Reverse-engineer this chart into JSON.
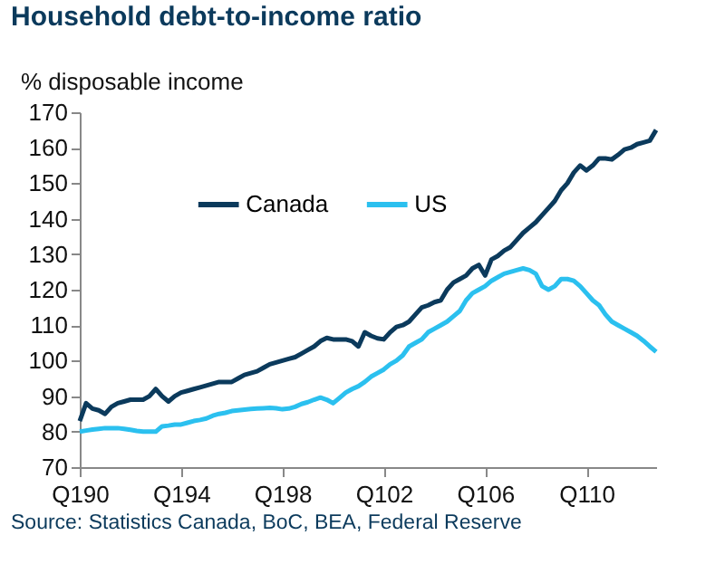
{
  "chart_data": {
    "type": "line",
    "title": "Household debt-to-income ratio",
    "ylabel": "% disposable income",
    "annotations": [
      "Source: Statistics Canada, BoC, BEA, Federal Reserve"
    ],
    "categories": [
      "Q190",
      null,
      null,
      null,
      null,
      null,
      null,
      null,
      null,
      null,
      null,
      null,
      null,
      null,
      null,
      null,
      "Q194",
      null,
      null,
      null,
      null,
      null,
      null,
      null,
      null,
      null,
      null,
      null,
      null,
      null,
      null,
      null,
      "Q198",
      null,
      null,
      null,
      null,
      null,
      null,
      null,
      null,
      null,
      null,
      null,
      null,
      null,
      null,
      null,
      "Q102",
      null,
      null,
      null,
      null,
      null,
      null,
      null,
      null,
      null,
      null,
      null,
      null,
      null,
      null,
      null,
      "Q106",
      null,
      null,
      null,
      null,
      null,
      null,
      null,
      null,
      null,
      null,
      null,
      null,
      null,
      null,
      null,
      "Q110",
      null,
      null,
      null,
      null,
      null,
      null,
      null,
      null,
      null,
      null,
      null
    ],
    "ylim": [
      70,
      170
    ],
    "yticks": [
      70,
      80,
      90,
      100,
      110,
      120,
      130,
      140,
      150,
      160,
      170
    ],
    "grid": false,
    "legend": "top",
    "series": [
      {
        "name": "Canada",
        "color": "#0b3a5c",
        "values": [
          83,
          88,
          86.5,
          86,
          85,
          87,
          88,
          88.5,
          89,
          89,
          89,
          90,
          92,
          90,
          88.5,
          90,
          91,
          91.5,
          92,
          92.5,
          93,
          93.5,
          94,
          94,
          94,
          95,
          96,
          96.5,
          97,
          98,
          99,
          99.5,
          100,
          100.5,
          101,
          102,
          103,
          104,
          105.5,
          106.4,
          106,
          106,
          106,
          105.5,
          104,
          108,
          107,
          106.3,
          106,
          108,
          109.5,
          110,
          111,
          113,
          115,
          115.6,
          116.5,
          117,
          120,
          122,
          123,
          124,
          126,
          127,
          124,
          128.5,
          129.5,
          131,
          132,
          134,
          136,
          137.5,
          139,
          141,
          143,
          145,
          148,
          150,
          153,
          155,
          153.6,
          155,
          157,
          157,
          156.7,
          158,
          159.5,
          160,
          161,
          161.5,
          162,
          165
        ]
      },
      {
        "name": "US",
        "color": "#2bc0ef",
        "values": [
          80,
          80.3,
          80.6,
          80.8,
          81,
          81,
          81,
          80.8,
          80.5,
          80.2,
          80,
          80,
          80,
          81.5,
          81.7,
          82,
          82,
          82.5,
          83,
          83.3,
          83.7,
          84.5,
          85,
          85.3,
          85.8,
          86,
          86.2,
          86.4,
          86.5,
          86.6,
          86.7,
          86.6,
          86.3,
          86.5,
          87,
          87.8,
          88.3,
          89,
          89.6,
          89,
          88,
          89.5,
          91,
          92,
          92.8,
          94,
          95.5,
          96.5,
          97.5,
          99,
          100,
          101.5,
          104,
          105,
          106,
          108,
          109,
          110,
          111,
          112.5,
          114,
          117,
          119,
          120,
          121,
          122.5,
          123.5,
          124.5,
          125,
          125.5,
          126,
          125.5,
          124.5,
          121,
          120,
          121,
          123,
          123,
          122.5,
          121,
          119,
          117,
          115.6,
          113,
          111,
          110,
          109,
          108,
          107,
          105.6,
          104,
          102.5
        ]
      }
    ]
  }
}
